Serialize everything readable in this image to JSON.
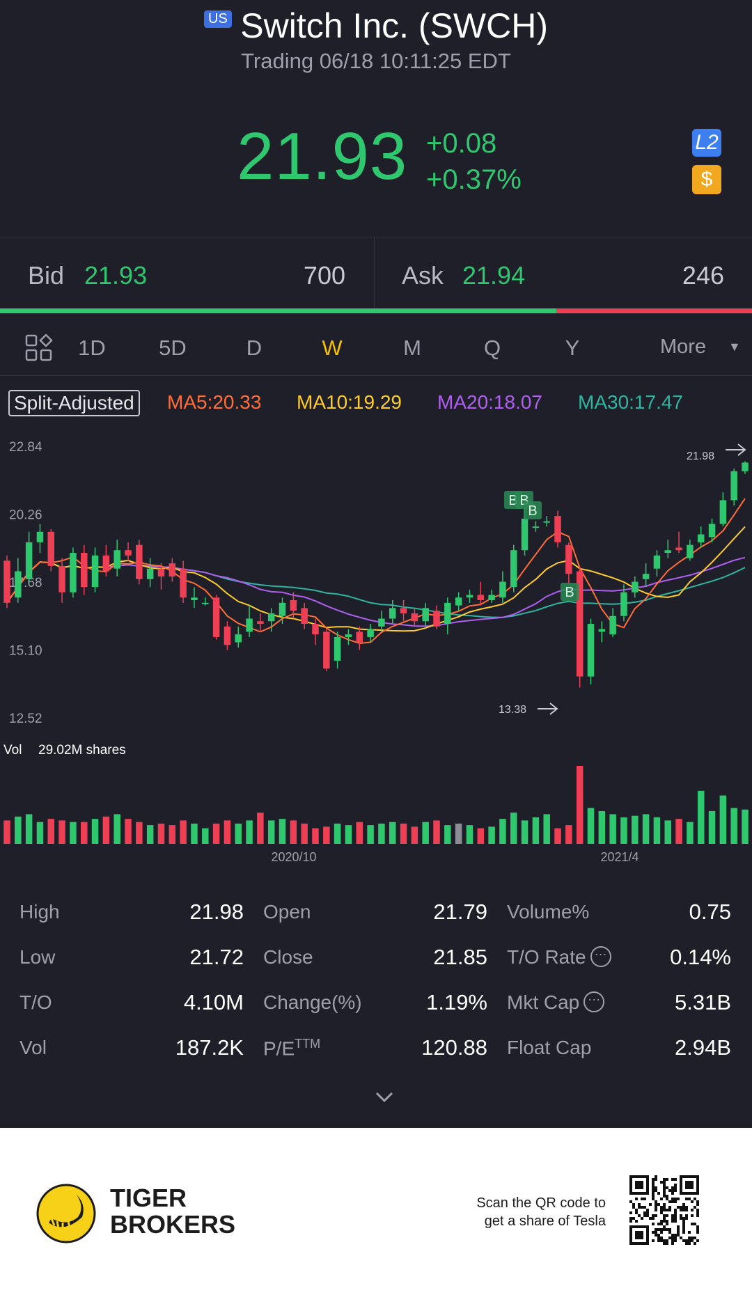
{
  "header": {
    "market_badge": "US",
    "title": "Switch Inc. (SWCH)",
    "status": "Trading 06/18 10:11:25 EDT",
    "price": "21.93",
    "change": "+0.08",
    "change_pct": "+0.37%",
    "l2_badge": "L2",
    "dollar_badge": "$"
  },
  "quote": {
    "bid_label": "Bid",
    "bid_price": "21.93",
    "bid_qty": "700",
    "ask_label": "Ask",
    "ask_price": "21.94",
    "ask_qty": "246",
    "bid_ratio": 0.74
  },
  "tabs": [
    "1D",
    "5D",
    "D",
    "W",
    "M",
    "Q",
    "Y"
  ],
  "active_tab": "W",
  "more_label": "More",
  "indicators": {
    "split_label": "Split-Adjusted",
    "ma5": "MA5:20.33",
    "ma10": "MA10:19.29",
    "ma20": "MA20:18.07",
    "ma30": "MA30:17.47"
  },
  "colors": {
    "up": "#2fc86f",
    "down": "#ef3f55",
    "ma5": "#ff6d38",
    "ma10": "#ffcc2e",
    "ma20": "#b060f0",
    "ma30": "#2fb5a0",
    "active_tab": "#f5c000"
  },
  "chart": {
    "y_ticks": [
      "22.84",
      "20.26",
      "17.68",
      "15.10",
      "12.52"
    ],
    "high_marker": "21.98",
    "low_marker": "13.38",
    "vol_label": "Vol",
    "vol_value": "29.02M shares",
    "x_labels": [
      "2020/10",
      "2021/4"
    ],
    "buy_marker": "B"
  },
  "chart_data": {
    "type": "candlestick",
    "ylim": [
      12.52,
      22.84
    ],
    "candles": [
      [
        18.2,
        16.6,
        18.4,
        16.4
      ],
      [
        16.8,
        17.8,
        18.3,
        16.6
      ],
      [
        17.5,
        18.9,
        19.3,
        17.3
      ],
      [
        18.9,
        19.3,
        19.6,
        18.5
      ],
      [
        19.3,
        18.0,
        19.4,
        17.8
      ],
      [
        18.0,
        17.0,
        18.3,
        16.6
      ],
      [
        17.0,
        18.5,
        18.7,
        16.8
      ],
      [
        18.5,
        17.2,
        18.8,
        16.9
      ],
      [
        17.2,
        18.4,
        18.7,
        17.0
      ],
      [
        18.4,
        17.8,
        18.8,
        17.6
      ],
      [
        17.9,
        18.6,
        19.0,
        17.6
      ],
      [
        18.6,
        18.4,
        18.9,
        18.2
      ],
      [
        18.8,
        17.5,
        19.0,
        17.3
      ],
      [
        17.5,
        17.9,
        18.3,
        17.2
      ],
      [
        17.9,
        17.6,
        18.1,
        17.1
      ],
      [
        18.1,
        17.6,
        18.3,
        17.4
      ],
      [
        17.9,
        16.8,
        18.2,
        16.6
      ],
      [
        16.7,
        16.8,
        17.2,
        16.4
      ],
      [
        16.6,
        16.6,
        16.8,
        16.5
      ],
      [
        16.8,
        15.3,
        16.9,
        15.2
      ],
      [
        15.7,
        15.0,
        15.9,
        14.8
      ],
      [
        15.1,
        15.4,
        15.7,
        14.9
      ],
      [
        15.5,
        16.0,
        16.5,
        15.3
      ],
      [
        15.9,
        15.8,
        16.2,
        15.5
      ],
      [
        15.9,
        16.2,
        16.4,
        15.5
      ],
      [
        16.1,
        16.6,
        16.8,
        15.8
      ],
      [
        16.7,
        16.3,
        17.0,
        16.0
      ],
      [
        16.4,
        15.8,
        16.6,
        15.6
      ],
      [
        15.8,
        15.4,
        16.0,
        15.0
      ],
      [
        15.5,
        14.1,
        15.6,
        14.0
      ],
      [
        14.4,
        15.3,
        15.5,
        14.1
      ],
      [
        15.3,
        15.4,
        15.6,
        15.0
      ],
      [
        15.5,
        15.1,
        15.7,
        14.8
      ],
      [
        15.3,
        15.6,
        15.8,
        15.1
      ],
      [
        15.7,
        16.0,
        16.3,
        15.5
      ],
      [
        16.0,
        16.4,
        16.7,
        15.8
      ],
      [
        16.4,
        16.2,
        16.7,
        15.9
      ],
      [
        16.2,
        15.9,
        16.4,
        15.7
      ],
      [
        15.9,
        16.4,
        16.6,
        15.7
      ],
      [
        16.3,
        15.7,
        16.5,
        15.6
      ],
      [
        15.8,
        16.6,
        16.8,
        15.4
      ],
      [
        16.5,
        16.8,
        17.0,
        16.3
      ],
      [
        16.8,
        16.9,
        17.1,
        16.6
      ],
      [
        16.9,
        16.7,
        17.4,
        16.5
      ],
      [
        16.7,
        16.9,
        17.1,
        16.6
      ],
      [
        16.8,
        17.4,
        17.8,
        16.6
      ],
      [
        17.2,
        18.6,
        18.8,
        17.0
      ],
      [
        18.6,
        19.8,
        20.6,
        18.4
      ],
      [
        19.5,
        19.5,
        19.7,
        19.3
      ],
      [
        19.7,
        19.7,
        19.9,
        19.5
      ],
      [
        19.9,
        18.9,
        20.1,
        18.7
      ],
      [
        18.8,
        17.7,
        18.9,
        17.3
      ],
      [
        17.8,
        13.8,
        18.0,
        13.38
      ],
      [
        13.8,
        15.8,
        16.0,
        13.5
      ],
      [
        15.5,
        15.6,
        15.9,
        15.1
      ],
      [
        15.4,
        16.1,
        16.4,
        15.3
      ],
      [
        16.1,
        17.0,
        17.3,
        15.9
      ],
      [
        17.0,
        17.4,
        17.6,
        16.8
      ],
      [
        17.5,
        17.7,
        18.1,
        17.2
      ],
      [
        17.9,
        18.4,
        18.6,
        17.6
      ],
      [
        18.5,
        18.6,
        19.0,
        18.3
      ],
      [
        18.7,
        18.6,
        19.3,
        18.5
      ],
      [
        18.3,
        18.8,
        19.0,
        18.2
      ],
      [
        18.9,
        19.2,
        19.5,
        18.7
      ],
      [
        19.1,
        19.6,
        19.8,
        18.9
      ],
      [
        19.6,
        20.5,
        20.8,
        19.5
      ],
      [
        20.5,
        21.6,
        21.7,
        20.3
      ],
      [
        21.6,
        21.93,
        21.98,
        21.5
      ]
    ],
    "volume": [
      0.3,
      0.35,
      0.38,
      0.28,
      0.32,
      0.3,
      0.28,
      0.28,
      0.32,
      0.35,
      0.38,
      0.32,
      0.28,
      0.24,
      0.26,
      0.24,
      0.3,
      0.26,
      0.2,
      0.26,
      0.3,
      0.26,
      0.3,
      0.4,
      0.3,
      0.32,
      0.3,
      0.26,
      0.2,
      0.22,
      0.26,
      0.24,
      0.28,
      0.24,
      0.26,
      0.28,
      0.26,
      0.22,
      0.28,
      0.3,
      0.24,
      0.26,
      0.24,
      0.2,
      0.22,
      0.32,
      0.4,
      0.3,
      0.34,
      0.38,
      0.2,
      0.24,
      1.0,
      0.46,
      0.42,
      0.38,
      0.34,
      0.36,
      0.38,
      0.34,
      0.3,
      0.32,
      0.28,
      0.68,
      0.42,
      0.62,
      0.46,
      0.44
    ]
  },
  "stats": [
    {
      "label": "High",
      "value": "21.98"
    },
    {
      "label": "Open",
      "value": "21.79"
    },
    {
      "label": "Volume%",
      "value": "0.75"
    },
    {
      "label": "Low",
      "value": "21.72"
    },
    {
      "label": "Close",
      "value": "21.85"
    },
    {
      "label": "T/O Rate",
      "value": "0.14%"
    },
    {
      "label": "T/O",
      "value": "4.10M"
    },
    {
      "label": "Change(%)",
      "value": "1.19%"
    },
    {
      "label": "Mkt Cap",
      "value": "5.31B"
    },
    {
      "label": "Vol",
      "value": "187.2K"
    },
    {
      "label": "P/E",
      "value": "120.88"
    },
    {
      "label": "Float Cap",
      "value": "2.94B"
    }
  ],
  "pe_sup": "TTM",
  "footer": {
    "brand_line1": "TIGER",
    "brand_line2": "BROKERS",
    "scan_line1": "Scan the QR code to",
    "scan_line2": "get a share of Tesla"
  }
}
